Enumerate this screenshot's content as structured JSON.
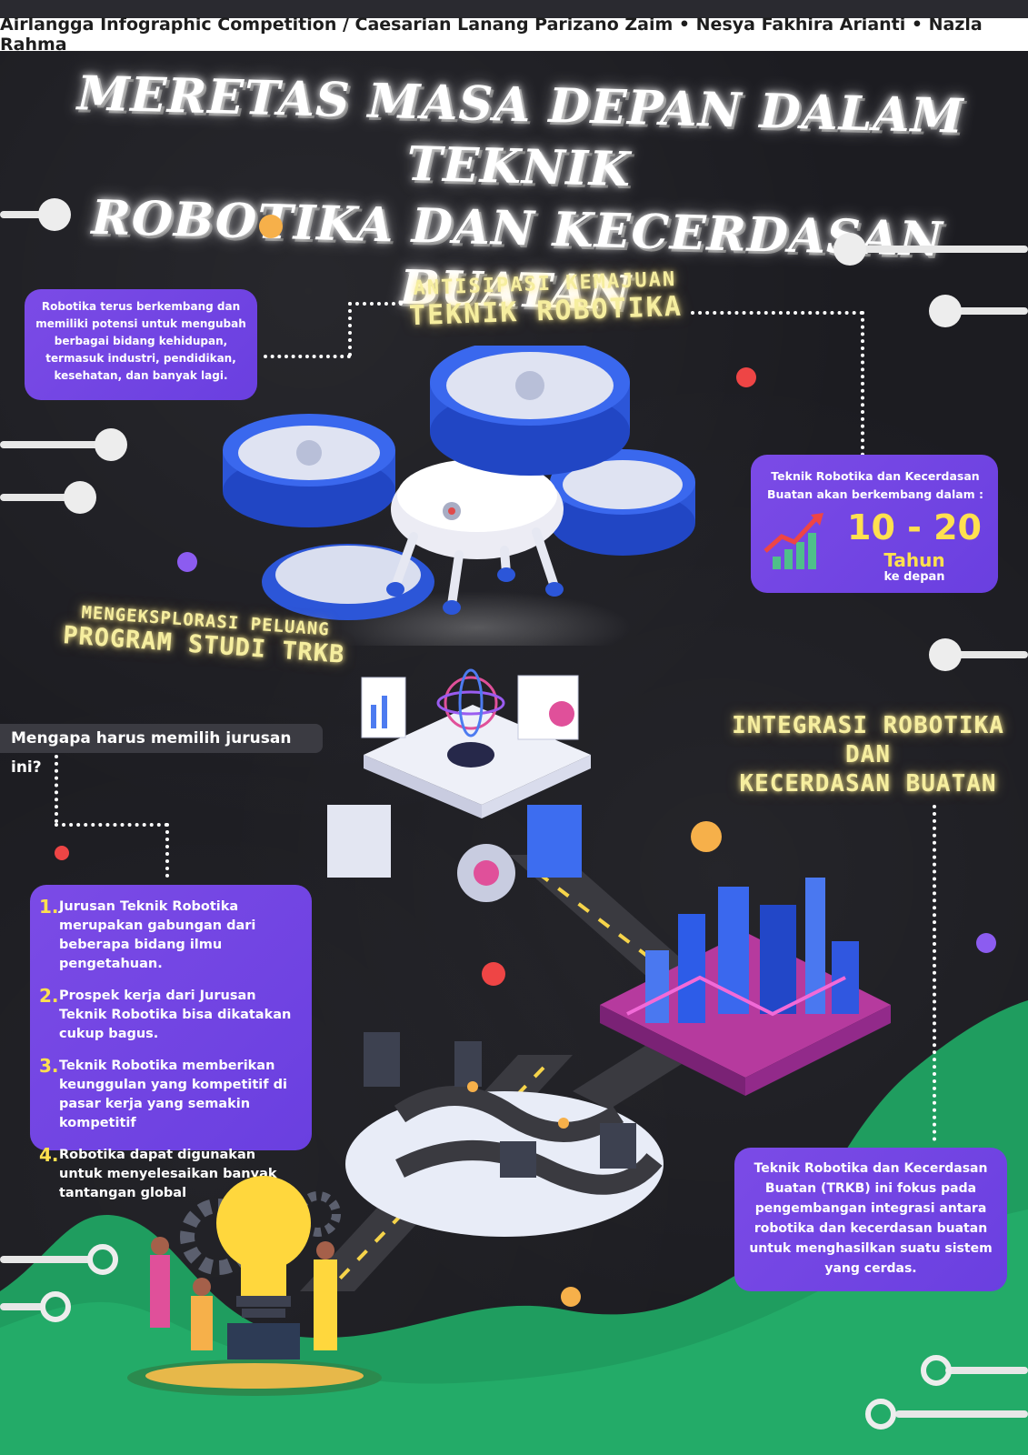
{
  "header": {
    "credit": "Airlangga Infographic Competition / Caesarian Lanang Parizano Zaim • Nesya Fakhira Arianti • Nazla Rahma"
  },
  "title": {
    "line1": "MERETAS MASA DEPAN DALAM TEKNIK",
    "line2": "ROBOTIKA DAN KECERDASAN BUATAN"
  },
  "section1": {
    "heading_line1": "ANTISIPASI KEMAJUAN",
    "heading_line2": "TEKNIK ROBOTIKA",
    "card_text": "Robotika terus berkembang dan memiliki potensi untuk mengubah berbagai bidang kehidupan, termasuk industri, pendidikan, kesehatan, dan banyak lagi."
  },
  "stat_card": {
    "intro": "Teknik Robotika dan Kecerdasan Buatan akan berkembang dalam :",
    "value": "10 - 20",
    "unit": "Tahun",
    "suffix": "ke depan"
  },
  "section2": {
    "heading_line1": "MENGEKSPLORASI PELUANG",
    "heading_line2": "PROGRAM STUDI TRKB",
    "question": "Mengapa harus memilih jurusan ini?",
    "reasons": [
      {
        "num": "1.",
        "text": "Jurusan Teknik Robotika merupakan gabungan dari beberapa bidang ilmu pengetahuan."
      },
      {
        "num": "2.",
        "text": "Prospek kerja dari Jurusan Teknik Robotika bisa dikatakan cukup bagus."
      },
      {
        "num": "3.",
        "text": "Teknik Robotika memberikan keunggulan yang kompetitif di pasar kerja yang semakin kompetitif"
      },
      {
        "num": "4.",
        "text": "Robotika dapat digunakan untuk menyelesaikan banyak tantangan global"
      }
    ]
  },
  "section3": {
    "heading_line1": "INTEGRASI ROBOTIKA",
    "heading_line2": "DAN",
    "heading_line3": "KECERDASAN BUATAN",
    "card_text": "Teknik Robotika dan Kecerdasan Buatan (TRKB) ini fokus pada pengembangan integrasi antara robotika dan kecerdasan buatan untuk menghasilkan suatu sistem yang cerdas."
  },
  "colors": {
    "background": "#1c1c21",
    "card_purple": "#7048e4",
    "glow_yellow": "#f6ee9f",
    "accent_green": "#1fa060",
    "stat_yellow": "#ffe04f"
  }
}
